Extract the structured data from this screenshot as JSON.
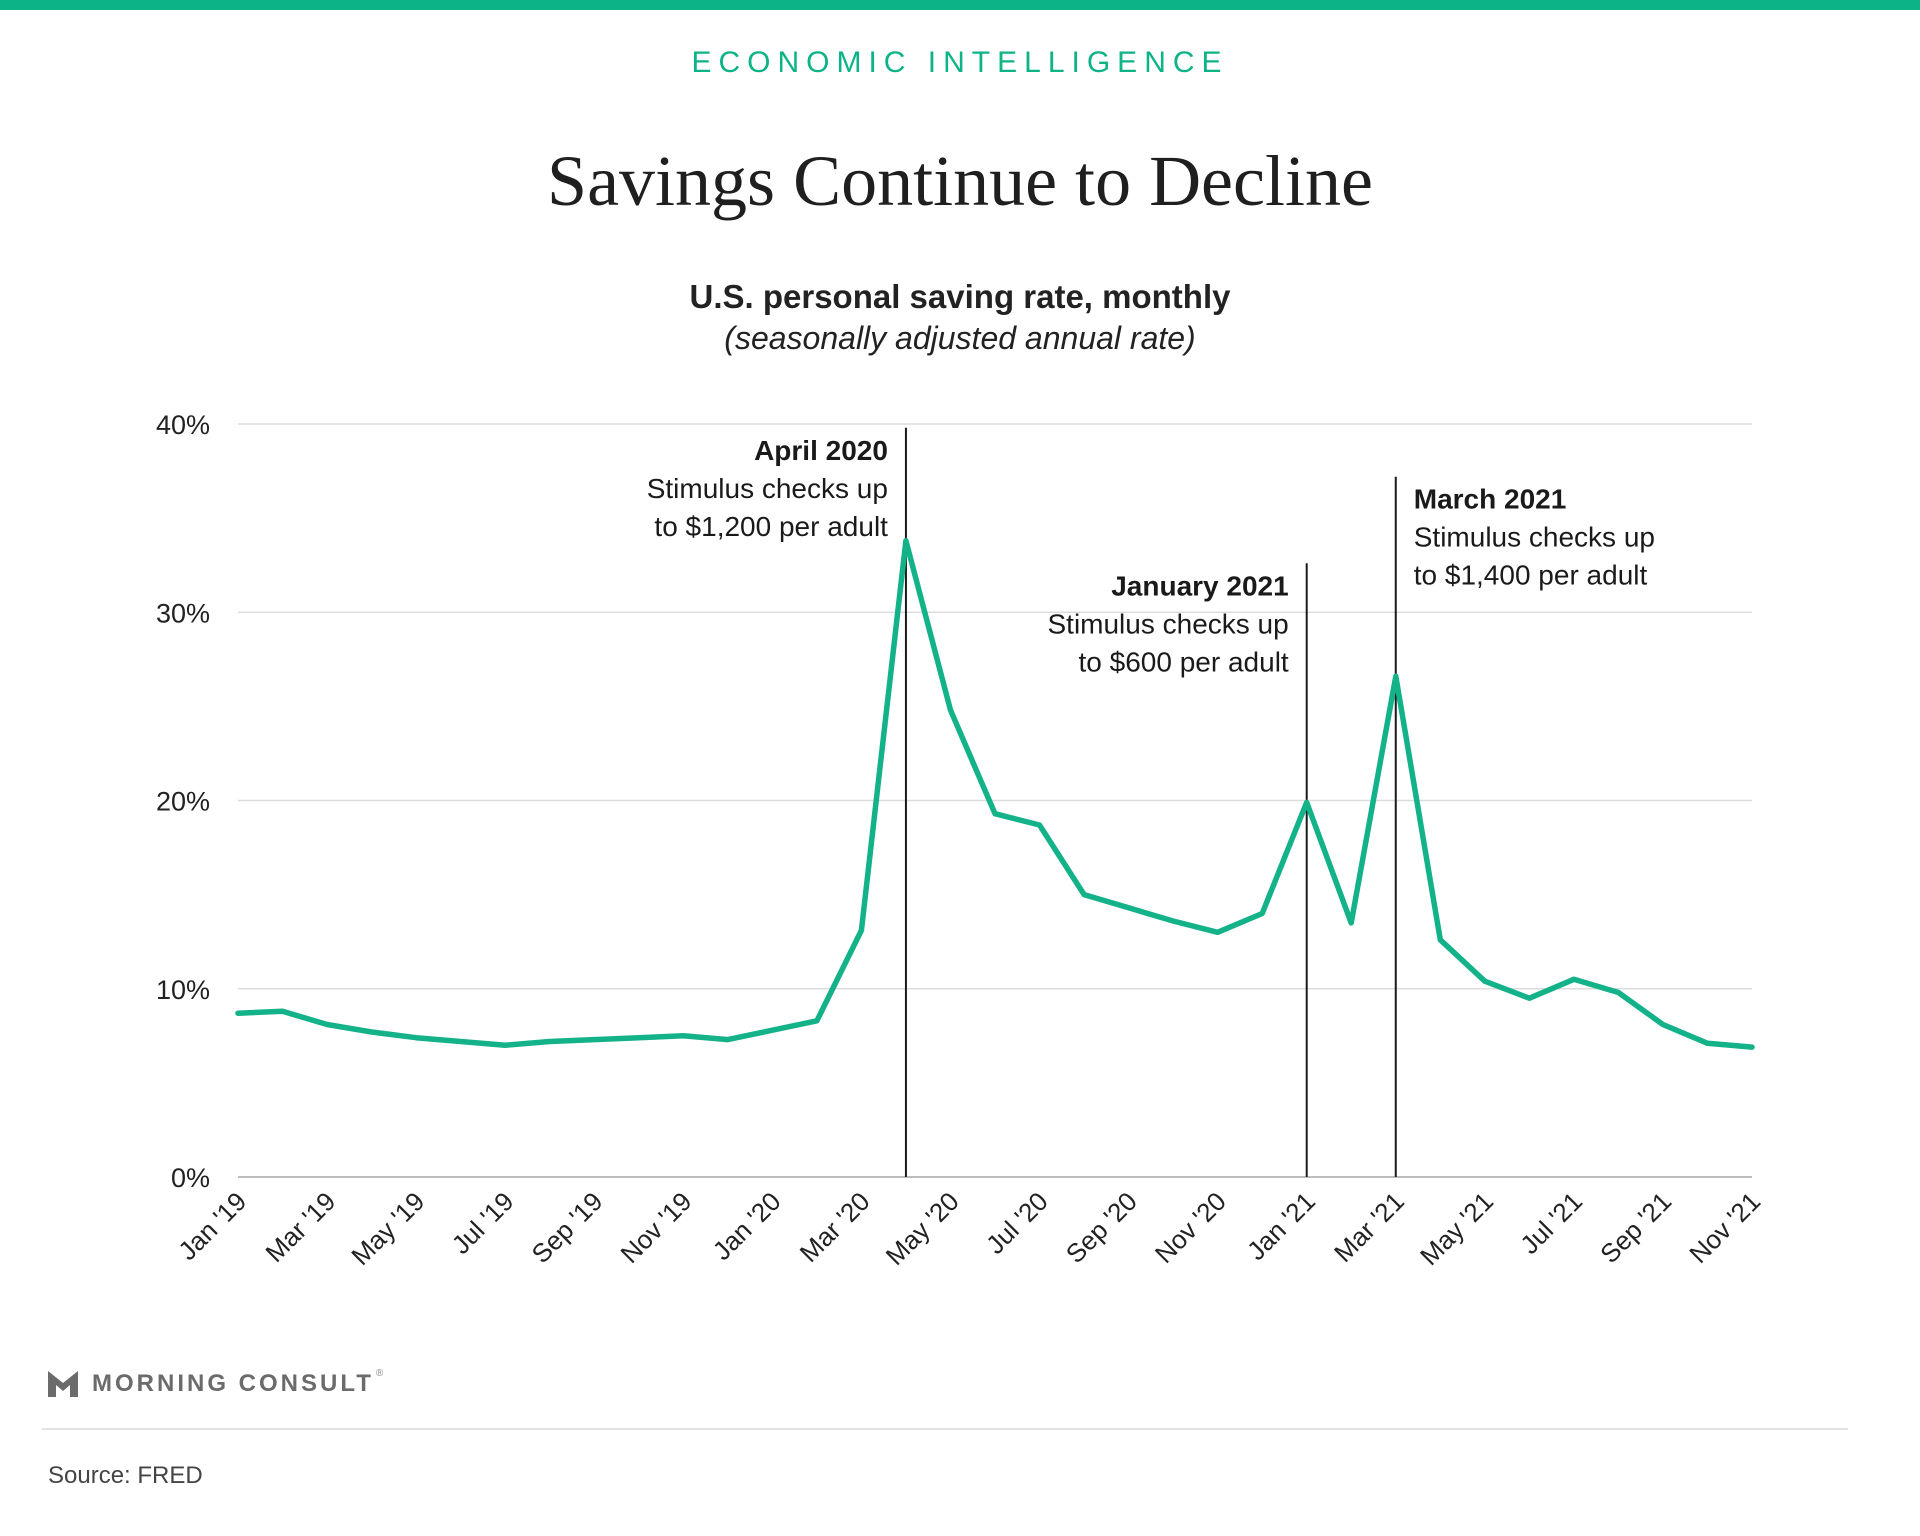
{
  "header": {
    "kicker": "ECONOMIC INTELLIGENCE",
    "title": "Savings Continue to Decline",
    "subtitle": "U.S. personal saving rate, monthly",
    "subtitle2": "(seasonally adjusted annual rate)"
  },
  "colors": {
    "accent": "#0cb387",
    "line": "#13b288",
    "grid": "#dcdcdc",
    "text": "#222222"
  },
  "chart_data": {
    "type": "line",
    "x": [
      "Jan '19",
      "Feb '19",
      "Mar '19",
      "Apr '19",
      "May '19",
      "Jun '19",
      "Jul '19",
      "Aug '19",
      "Sep '19",
      "Oct '19",
      "Nov '19",
      "Dec '19",
      "Jan '20",
      "Feb '20",
      "Mar '20",
      "Apr '20",
      "May '20",
      "Jun '20",
      "Jul '20",
      "Aug '20",
      "Sep '20",
      "Oct '20",
      "Nov '20",
      "Dec '20",
      "Jan '21",
      "Feb '21",
      "Mar '21",
      "Apr '21",
      "May '21",
      "Jun '21",
      "Jul '21",
      "Aug '21",
      "Sep '21",
      "Oct '21",
      "Nov '21"
    ],
    "series": [
      {
        "values": [
          8.7,
          8.8,
          8.1,
          7.7,
          7.4,
          7.2,
          7.0,
          7.2,
          7.3,
          7.4,
          7.5,
          7.3,
          7.8,
          8.3,
          13.1,
          33.8,
          24.8,
          19.3,
          18.7,
          15.0,
          14.3,
          13.6,
          13.0,
          14.0,
          19.9,
          13.5,
          26.6,
          12.6,
          10.4,
          9.5,
          10.5,
          9.8,
          8.1,
          7.1,
          6.9
        ]
      }
    ],
    "x_tick_labels": [
      "Jan '19",
      "Mar '19",
      "May '19",
      "Jul '19",
      "Sep '19",
      "Nov '19",
      "Jan '20",
      "Mar '20",
      "May '20",
      "Jul '20",
      "Sep '20",
      "Nov '20",
      "Jan '21",
      "Mar '21",
      "May '21",
      "Jul '21",
      "Sep '21",
      "Nov '21"
    ],
    "y_ticks": [
      "0%",
      "10%",
      "20%",
      "30%",
      "40%"
    ],
    "ylim": [
      0,
      40
    ],
    "grid": true,
    "legend": "none",
    "annotations": [
      {
        "x": "Apr '20",
        "title": "April 2020",
        "lines": [
          "Stimulus checks up",
          "to $1,200 per adult"
        ],
        "align": "left-of-line",
        "top_value": 39.8
      },
      {
        "x": "Jan '21",
        "title": "January 2021",
        "lines": [
          "Stimulus checks up",
          "to $600 per adult"
        ],
        "align": "left-of-line",
        "top_value": 32.6
      },
      {
        "x": "Mar '21",
        "title": "March 2021",
        "lines": [
          "Stimulus checks up",
          "to $1,400 per adult"
        ],
        "align": "right-of-line",
        "top_value": 37.2
      }
    ]
  },
  "footer": {
    "brand": "MORNING CONSULT",
    "tm": "®",
    "source": "Source: FRED"
  }
}
